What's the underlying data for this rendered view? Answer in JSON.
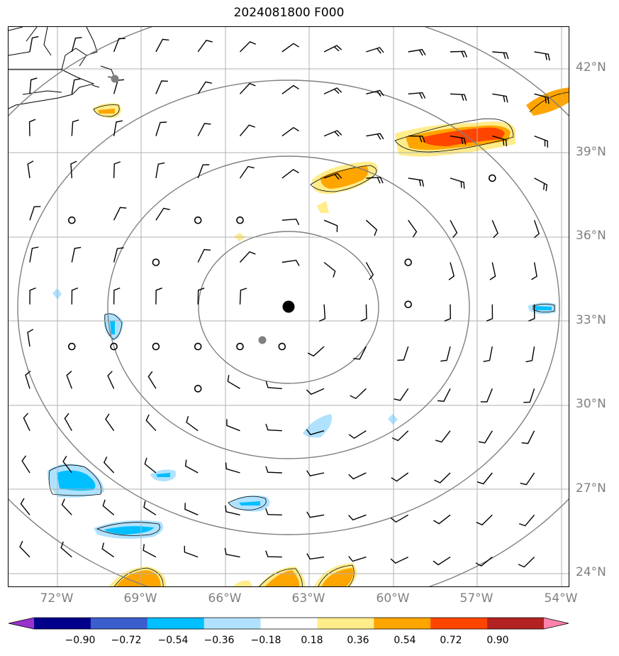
{
  "title": "2024081800 F000",
  "lat_labels": [
    "42°N",
    "39°N",
    "36°N",
    "33°N",
    "30°N",
    "27°N",
    "24°N"
  ],
  "lon_labels": [
    "72°W",
    "69°W",
    "66°W",
    "63°W",
    "60°W",
    "57°W",
    "54°W"
  ],
  "colorbar": {
    "tick_labels": [
      "−0.90",
      "−0.72",
      "−0.54",
      "−0.36",
      "−0.18",
      "0.18",
      "0.36",
      "0.54",
      "0.72",
      "0.90"
    ],
    "colors": [
      "#9932cc",
      "#00008b",
      "#3a5fcd",
      "#00bfff",
      "#b0e2ff",
      "#ffffff",
      "#ffec8b",
      "#ffa500",
      "#ff4500",
      "#b22222",
      "#ff82ab"
    ]
  },
  "colors": {
    "range_rings": "#808080",
    "grid": "#b0b0b0",
    "barbs": "#000000",
    "storm_center": "#000000",
    "positive_field": "#ffa500",
    "negative_field": "#00bfff"
  }
}
